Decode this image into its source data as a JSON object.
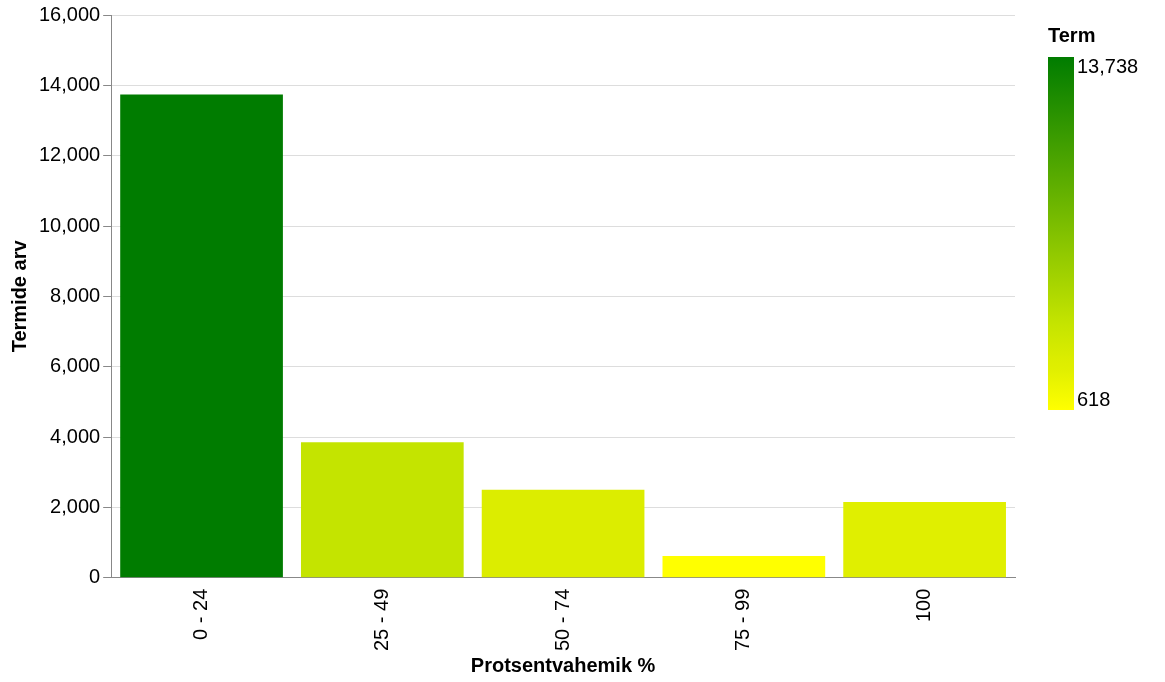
{
  "chart_data": {
    "type": "bar",
    "xlabel": "Protsentvahemik %",
    "ylabel": "Termide arv",
    "clabel": "Term",
    "categories": [
      "0 - 24",
      "25 - 49",
      "50 - 74",
      "75 - 99",
      "100"
    ],
    "values": [
      13738,
      3850,
      2500,
      618,
      2150
    ],
    "colors": [
      "#007c00",
      "#c4e400",
      "#dced00",
      "#ffff00",
      "#e0ef00"
    ],
    "ylim": [
      0,
      16000
    ],
    "yticks": [
      {
        "value": 0,
        "label": "0"
      },
      {
        "value": 2000,
        "label": "2,000"
      },
      {
        "value": 4000,
        "label": "4,000"
      },
      {
        "value": 6000,
        "label": "6,000"
      },
      {
        "value": 8000,
        "label": "8,000"
      },
      {
        "value": 10000,
        "label": "10,000"
      },
      {
        "value": 12000,
        "label": "12,000"
      },
      {
        "value": 14000,
        "label": "14,000"
      },
      {
        "value": 16000,
        "label": "16,000"
      }
    ],
    "clim": [
      618,
      13738
    ],
    "cticks": [
      {
        "value": 618,
        "label": "618"
      },
      {
        "value": 13738,
        "label": "13,738"
      }
    ],
    "grid": "y",
    "legend": false
  }
}
